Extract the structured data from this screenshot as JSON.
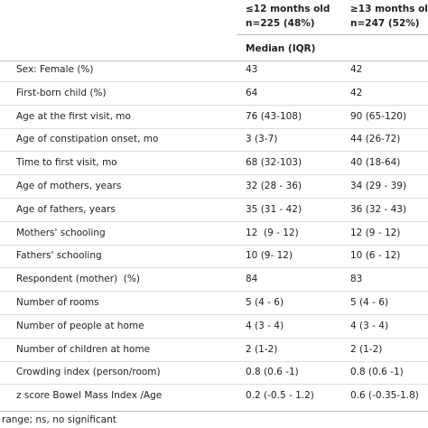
{
  "header": {
    "columns": [
      {
        "title": "≤12 months old",
        "n": "n=225 (48%)"
      },
      {
        "title": "≥13 months ol",
        "n": "n=247 (52%)"
      }
    ],
    "subheader": "Median (IQR)"
  },
  "table": {
    "rows": [
      [
        "Sex: Female (%)",
        "43",
        "42"
      ],
      [
        "First-born child (%)",
        "64",
        "42"
      ],
      [
        "Age at the first visit, mo",
        "76 (43-108)",
        "90 (65-120)"
      ],
      [
        "Age of constipation onset, mo",
        "3 (3-7)",
        "44 (26-72)"
      ],
      [
        "Time to first visit, mo",
        "68 (32-103)",
        "40 (18-64)"
      ],
      [
        "Age of mothers, years",
        "32 (28 - 36)",
        "34 (29 - 39)"
      ],
      [
        "Age of fathers, years",
        "35 (31 - 42)",
        "36 (32 - 43)"
      ],
      [
        "Mothers' schooling",
        "12  (9 - 12)",
        "12 (9 - 12)"
      ],
      [
        "Fathers' schooling",
        "10 (9- 12)",
        "10 (6 - 12)"
      ],
      [
        "Respondent (mother)  (%)",
        "84",
        "83"
      ],
      [
        "Number of rooms",
        "5 (4 - 6)",
        "5 (4 - 6)"
      ],
      [
        "Number of people at home",
        "4 (3 - 4)",
        "4 (3 - 4)"
      ],
      [
        "Number of children at home",
        "2 (1-2)",
        "2 (1-2)"
      ],
      [
        "Crowding index (person/room)",
        "0.8 (0.6 -1)",
        "0.8 (0.6 -1)"
      ],
      [
        "z score Bowel Mass Index /Age",
        "0.2 (-0.5 - 1.2)",
        "0.6 (-0.35-1.8)"
      ]
    ]
  },
  "footnote": "range; ns, no significant"
}
